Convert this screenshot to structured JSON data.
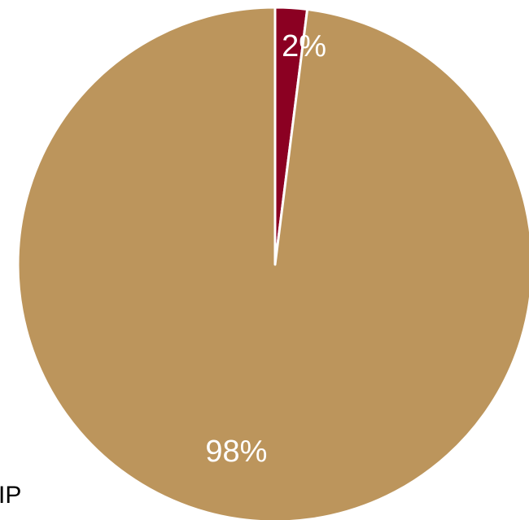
{
  "chart_data": {
    "type": "pie",
    "title": "",
    "slices": [
      {
        "label": "",
        "value": 2,
        "display": "2%",
        "color": "#8B0022"
      },
      {
        "label": "",
        "value": 98,
        "display": "98%",
        "color": "#BC955C"
      }
    ],
    "legend": {
      "entries": [
        "IP"
      ],
      "placement": "bottom-left"
    }
  }
}
